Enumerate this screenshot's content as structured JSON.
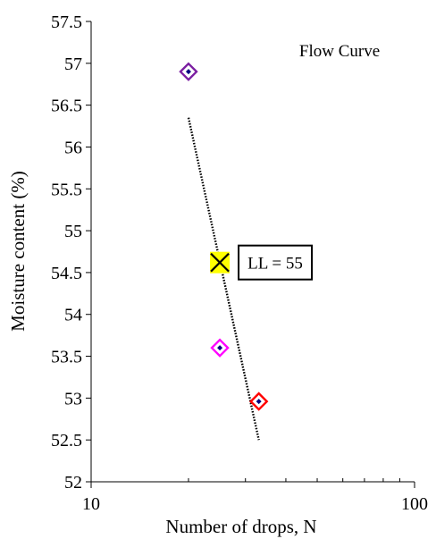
{
  "chart_data": {
    "type": "scatter",
    "title": "Flow Curve",
    "xlabel": "Number of drops, N",
    "ylabel": "Moisture content (%)",
    "x_scale": "log",
    "xlim": [
      10,
      100
    ],
    "ylim": [
      52,
      57.5
    ],
    "x_tick_labels": [
      "10",
      "100"
    ],
    "y_ticks": [
      52,
      52.5,
      53,
      53.5,
      54,
      54.5,
      55,
      55.5,
      56,
      56.5,
      57,
      57.5
    ],
    "y_tick_labels": [
      "52",
      "52.5",
      "53",
      "53.5",
      "54",
      "54.5",
      "55",
      "55.5",
      "56",
      "56.5",
      "57",
      "57.5"
    ],
    "grid": false,
    "legend": "none",
    "points": [
      {
        "x": 20,
        "y": 56.9,
        "color": "#7B1FA2"
      },
      {
        "x": 25,
        "y": 53.6,
        "color": "#FF00FF"
      },
      {
        "x": 33,
        "y": 52.96,
        "color": "#FF0000"
      }
    ],
    "trendline": {
      "style": "dotted",
      "x": [
        20,
        33
      ],
      "y": [
        56.35,
        52.5
      ]
    },
    "liquid_limit": {
      "x": 25,
      "y": 54.62,
      "label": "LL = 55",
      "highlight_color": "#FFFF00"
    }
  }
}
